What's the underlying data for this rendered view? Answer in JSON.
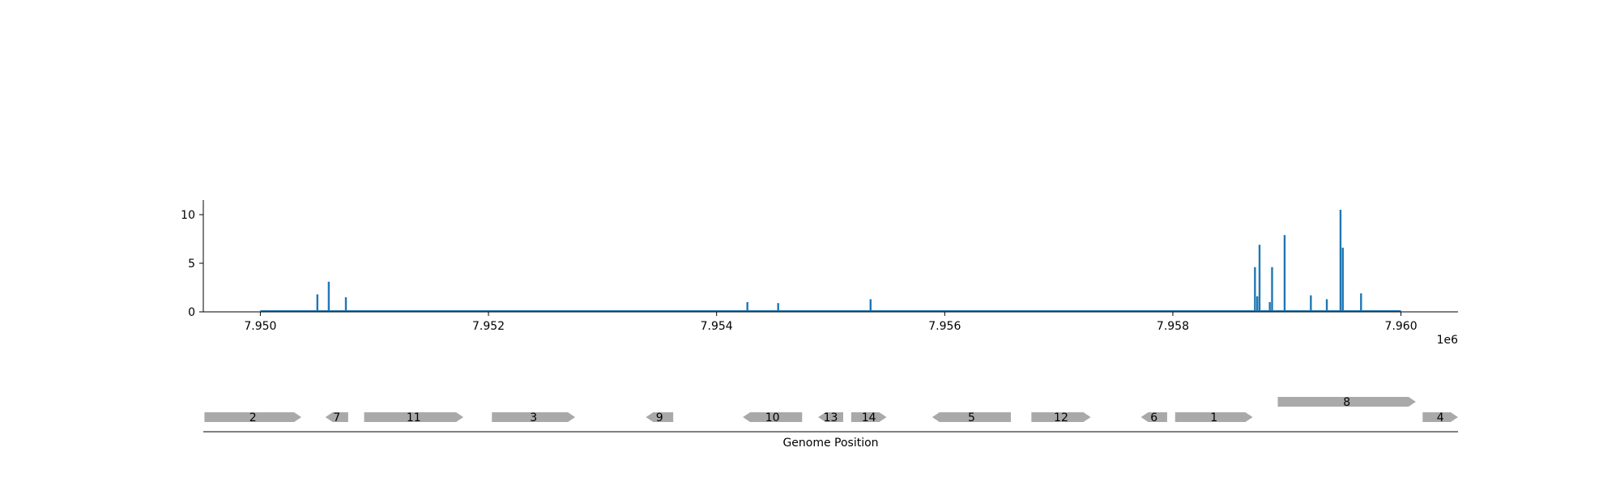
{
  "colors": {
    "bars": "#1f77b4",
    "genes": "#a9a9a9",
    "axis": "#000000"
  },
  "chart_data": [
    {
      "type": "bar",
      "title": "",
      "xlabel": "",
      "ylabel": "",
      "x_offset_label": "1e6",
      "xlim": [
        7.9495,
        7.9605
      ],
      "ylim": [
        0,
        11.5
      ],
      "xticks": [
        7.95,
        7.952,
        7.954,
        7.956,
        7.958,
        7.96
      ],
      "xtick_labels": [
        "7.950",
        "7.952",
        "7.954",
        "7.956",
        "7.958",
        "7.960"
      ],
      "yticks": [
        0,
        5,
        10
      ],
      "ytick_labels": [
        "0",
        "5",
        "10"
      ],
      "baseline": {
        "x_start": 7.95,
        "x_end": 7.96
      },
      "x": [
        7.9505,
        7.9506,
        7.95075,
        7.95427,
        7.95454,
        7.95535,
        7.95872,
        7.95874,
        7.95876,
        7.95885,
        7.95887,
        7.95898,
        7.95921,
        7.95935,
        7.95947,
        7.95949,
        7.95965
      ],
      "values": [
        1.8,
        3.1,
        1.5,
        1.0,
        0.9,
        1.3,
        4.6,
        1.6,
        6.9,
        1.0,
        4.6,
        7.9,
        1.7,
        1.3,
        10.5,
        6.6,
        1.9
      ]
    },
    {
      "type": "gene_track",
      "xlabel": "Genome Position",
      "genes": [
        {
          "label": "2",
          "start": 7.94951,
          "end": 7.95036,
          "strand": "+",
          "row": 0
        },
        {
          "label": "7",
          "start": 7.95057,
          "end": 7.95077,
          "strand": "-",
          "row": 0
        },
        {
          "label": "11",
          "start": 7.95091,
          "end": 7.95178,
          "strand": "+",
          "row": 0
        },
        {
          "label": "3",
          "start": 7.95203,
          "end": 7.95276,
          "strand": "+",
          "row": 0
        },
        {
          "label": "9",
          "start": 7.95338,
          "end": 7.95362,
          "strand": "-",
          "row": 0
        },
        {
          "label": "10",
          "start": 7.95423,
          "end": 7.95475,
          "strand": "-",
          "row": 0
        },
        {
          "label": "13",
          "start": 7.95489,
          "end": 7.95511,
          "strand": "-",
          "row": 0
        },
        {
          "label": "14",
          "start": 7.95518,
          "end": 7.95549,
          "strand": "+",
          "row": 0
        },
        {
          "label": "5",
          "start": 7.95589,
          "end": 7.95658,
          "strand": "-",
          "row": 0
        },
        {
          "label": "12",
          "start": 7.95676,
          "end": 7.95728,
          "strand": "+",
          "row": 0
        },
        {
          "label": "6",
          "start": 7.95772,
          "end": 7.95795,
          "strand": "-",
          "row": 0
        },
        {
          "label": "1",
          "start": 7.95802,
          "end": 7.9587,
          "strand": "+",
          "row": 0
        },
        {
          "label": "8",
          "start": 7.95892,
          "end": 7.96013,
          "strand": "+",
          "row": 1
        },
        {
          "label": "4",
          "start": 7.96019,
          "end": 7.9605,
          "strand": "+",
          "row": 0
        }
      ]
    }
  ]
}
